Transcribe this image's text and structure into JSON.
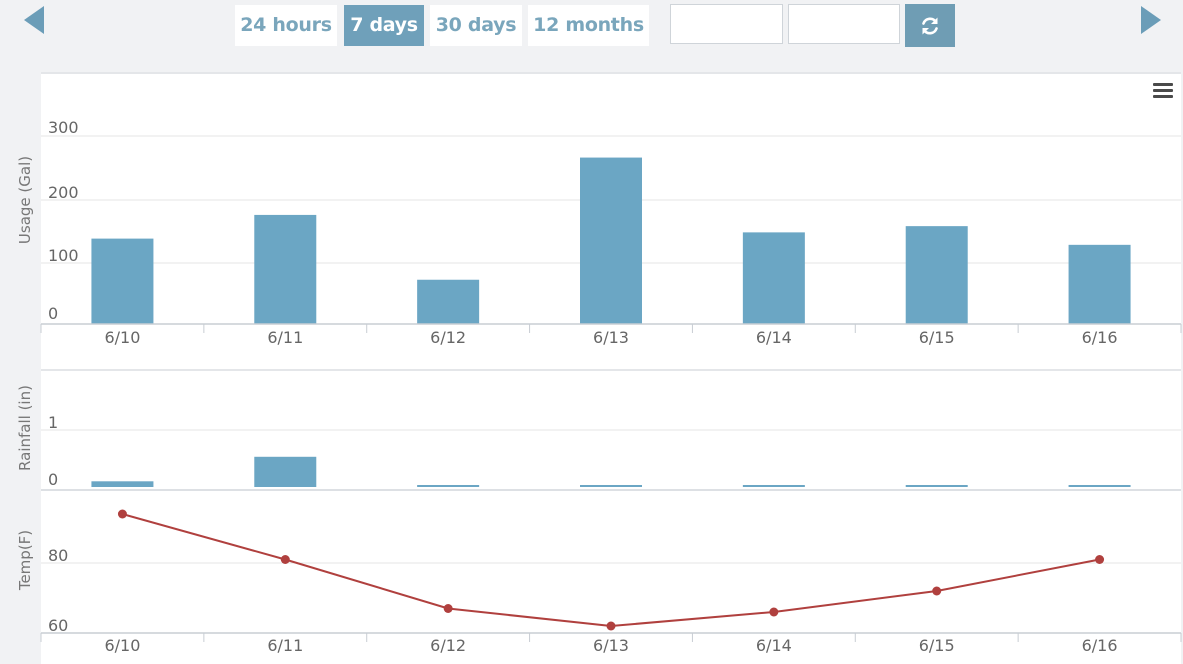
{
  "toolbar": {
    "ranges": [
      {
        "label": "24 hours",
        "active": false
      },
      {
        "label": "7 days",
        "active": true
      },
      {
        "label": "30 days",
        "active": false
      },
      {
        "label": "12 months",
        "active": false
      }
    ],
    "start_date_value": "",
    "end_date_value": "",
    "refresh_icon": "refresh-icon",
    "prev_icon": "caret-left-icon",
    "next_icon": "caret-right-icon",
    "menu_icon": "hamburger-icon"
  },
  "colors": {
    "bar": "#6ba6c4",
    "temp_line": "#b0403e",
    "accent": "#6fa0ba"
  },
  "chart_data": [
    {
      "type": "bar",
      "ylabel": "Usage (Gal)",
      "categories": [
        "6/10",
        "6/11",
        "6/12",
        "6/13",
        "6/14",
        "6/15",
        "6/16"
      ],
      "values": [
        137,
        175,
        71,
        267,
        147,
        157,
        127
      ],
      "ylim": [
        0,
        300
      ],
      "yticks": [
        0,
        100,
        200,
        300
      ],
      "grid": true
    },
    {
      "type": "bar",
      "ylabel": "Rainfall (in)",
      "categories": [
        "6/10",
        "6/11",
        "6/12",
        "6/13",
        "6/14",
        "6/15",
        "6/16"
      ],
      "values": [
        0.1,
        0.53,
        0.02,
        0.02,
        0.02,
        0.02,
        0.02
      ],
      "ylim": [
        0,
        1
      ],
      "yticks": [
        0,
        1
      ],
      "grid": true
    },
    {
      "type": "line",
      "ylabel": "Temp(F)",
      "categories": [
        "6/10",
        "6/11",
        "6/12",
        "6/13",
        "6/14",
        "6/15",
        "6/16"
      ],
      "values": [
        94,
        81,
        67,
        62,
        66,
        72,
        81
      ],
      "yticks": [
        60,
        80
      ],
      "grid": true
    }
  ]
}
